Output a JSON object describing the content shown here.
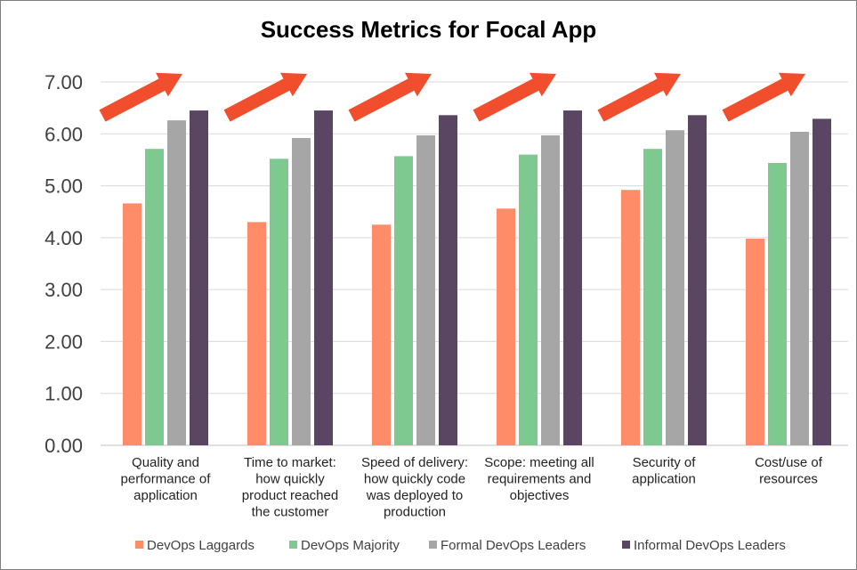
{
  "chart_data": {
    "type": "bar",
    "title": "Success Metrics for Focal App",
    "xlabel": "",
    "ylabel": "",
    "ylim": [
      0,
      7
    ],
    "yticks": [
      "0.00",
      "1.00",
      "2.00",
      "3.00",
      "4.00",
      "5.00",
      "6.00",
      "7.00"
    ],
    "grid": "horizontal",
    "legend_position": "bottom",
    "categories": [
      [
        "Quality and",
        "performance of",
        "application"
      ],
      [
        "Time to market:",
        "how quickly",
        "product reached",
        "the customer"
      ],
      [
        "Speed of delivery:",
        "how quickly code",
        "was deployed to",
        "production"
      ],
      [
        "Scope: meeting all",
        "requirements and",
        "objectives"
      ],
      [
        "Security of",
        "application"
      ],
      [
        "Cost/use of",
        "resources"
      ]
    ],
    "series": [
      {
        "name": "DevOps Laggards",
        "color": "#ff8c69",
        "values": [
          4.66,
          4.3,
          4.25,
          4.56,
          4.92,
          3.98
        ]
      },
      {
        "name": "DevOps Majority",
        "color": "#7ec98f",
        "values": [
          5.71,
          5.52,
          5.57,
          5.6,
          5.71,
          5.44
        ]
      },
      {
        "name": "Formal DevOps Leaders",
        "color": "#a6a6a6",
        "values": [
          6.26,
          5.92,
          5.97,
          5.97,
          6.07,
          6.04
        ]
      },
      {
        "name": "Informal DevOps Leaders",
        "color": "#5a4563",
        "values": [
          6.45,
          6.45,
          6.36,
          6.45,
          6.36,
          6.29
        ]
      }
    ],
    "annotations": {
      "arrow_icon": "trend-up-arrow-icon",
      "arrow_color": "#f04e2c",
      "count": 6
    }
  }
}
